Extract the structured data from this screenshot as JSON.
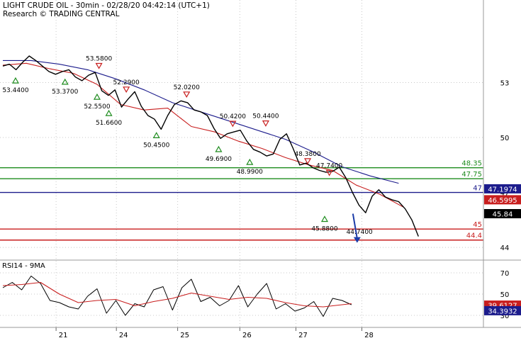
{
  "header": {
    "line1": "LIGHT CRUDE OIL - 30min - 02/28/20 04:42:14 (UTC+1)",
    "line2": "Research © TRADING CENTRAL"
  },
  "colors": {
    "price": "#000000",
    "ma_dark": "#1c1c8c",
    "ma_red": "#c81e1e",
    "level_green": "#1e8c1e",
    "level_blue": "#1c1c8c",
    "level_red": "#c81e1e",
    "arrow": "#1c3ca8"
  },
  "chart_data": [
    {
      "type": "line",
      "panel": "price",
      "x_days": [
        "21",
        "24",
        "25",
        "26",
        "27",
        "28"
      ],
      "y_ticks": [
        53,
        50,
        47,
        44
      ],
      "ylim": [
        43.5,
        56.5
      ],
      "series_price": {
        "x": [
          0,
          1.4,
          2.8,
          4.2,
          5.6,
          7.0,
          8.4,
          9.8,
          11.2,
          12.6,
          14.0,
          15.4,
          16.8,
          18.2,
          19.6,
          21.0,
          22.4,
          23.8,
          25.2,
          26.6,
          28.0,
          29.4,
          30.8,
          32.2,
          33.6,
          35.0,
          36.4,
          37.8,
          39.2,
          40.6,
          42.0,
          43.4,
          44.8,
          46.2,
          47.6,
          49.0,
          50.4,
          51.8,
          53.2,
          54.6,
          56.0,
          57.4,
          58.8,
          60.2,
          61.6,
          63.0,
          64.4,
          65.8,
          67.2,
          68.6,
          70.0,
          71.4,
          72.8,
          74.2,
          75.6,
          77.0,
          78.4,
          79.8,
          81.2,
          82.6,
          84.0,
          85.4,
          86.8,
          88.2
        ],
        "y": [
          53.9,
          54.0,
          53.7,
          54.1,
          54.45,
          54.2,
          53.9,
          53.6,
          53.45,
          53.6,
          53.7,
          53.3,
          53.1,
          53.4,
          53.55,
          52.55,
          52.3,
          52.6,
          51.66,
          52.1,
          52.5,
          51.7,
          51.2,
          51.0,
          50.45,
          51.2,
          51.8,
          52.0,
          51.9,
          51.5,
          51.4,
          51.2,
          50.5,
          49.95,
          50.2,
          50.3,
          50.4,
          49.8,
          49.35,
          49.2,
          48.99,
          49.1,
          49.9,
          50.2,
          49.4,
          48.5,
          48.6,
          48.35,
          48.2,
          48.1,
          48.15,
          48.38,
          47.8,
          47.0,
          46.3,
          45.89,
          46.8,
          47.15,
          46.75,
          46.6,
          46.5,
          46.1,
          45.5,
          44.6
        ]
      },
      "series_ma_dark": {
        "x": [
          0,
          6,
          12,
          18,
          24,
          30,
          36,
          42,
          48,
          54,
          60,
          66,
          72,
          78,
          84
        ],
        "y": [
          54.2,
          54.2,
          54.0,
          53.7,
          53.2,
          52.6,
          51.9,
          51.4,
          50.9,
          50.4,
          49.9,
          49.2,
          48.4,
          47.9,
          47.5
        ]
      },
      "series_ma_red": {
        "x": [
          0,
          5,
          10,
          15,
          20,
          25,
          30,
          35,
          40,
          45,
          50,
          55,
          60,
          65,
          70,
          75,
          80,
          85
        ],
        "y": [
          53.95,
          54.05,
          53.75,
          53.5,
          52.9,
          51.8,
          51.5,
          51.6,
          50.6,
          50.3,
          49.8,
          49.4,
          48.9,
          48.5,
          48.2,
          47.4,
          46.9,
          46.2
        ]
      },
      "levels": [
        {
          "name": "resistance-2",
          "value": 48.35,
          "label": "48.35",
          "color": "#1e8c1e"
        },
        {
          "name": "resistance-1",
          "value": 47.75,
          "label": "47.75",
          "color": "#1e8c1e"
        },
        {
          "name": "pivot",
          "value": 47,
          "label": "47",
          "color": "#1c1c8c"
        },
        {
          "name": "support-1",
          "value": 45,
          "label": "45",
          "color": "#c81e1e"
        },
        {
          "name": "support-2",
          "value": 44.4,
          "label": "44.4",
          "color": "#c81e1e"
        }
      ],
      "price_tags": [
        {
          "name": "tag-ma-dark",
          "value": 47.1974,
          "label": "47.1974",
          "bg": "#1c1c8c"
        },
        {
          "name": "tag-ma-red",
          "value": 46.5995,
          "label": "46.5995",
          "bg": "#c81e1e"
        },
        {
          "name": "tag-last",
          "value": 45.84,
          "label": "45.84",
          "bg": "#000000"
        }
      ],
      "swing_labels": [
        {
          "x": 2.7,
          "y": 53.44,
          "label": "53.4400",
          "kind": "low"
        },
        {
          "x": 13.2,
          "y": 53.37,
          "label": "53.3700",
          "kind": "low"
        },
        {
          "x": 20.4,
          "y": 53.58,
          "label": "53.5800",
          "kind": "high"
        },
        {
          "x": 20.0,
          "y": 52.55,
          "label": "52.5500",
          "kind": "low"
        },
        {
          "x": 26.2,
          "y": 52.29,
          "label": "52.2900",
          "kind": "high"
        },
        {
          "x": 22.5,
          "y": 51.66,
          "label": "51.6600",
          "kind": "low"
        },
        {
          "x": 39.0,
          "y": 52.02,
          "label": "52.0200",
          "kind": "high"
        },
        {
          "x": 32.6,
          "y": 50.45,
          "label": "50.4500",
          "kind": "low"
        },
        {
          "x": 48.8,
          "y": 50.42,
          "label": "50.4200",
          "kind": "high"
        },
        {
          "x": 55.8,
          "y": 50.44,
          "label": "50.4400",
          "kind": "high"
        },
        {
          "x": 45.8,
          "y": 49.69,
          "label": "49.6900",
          "kind": "low"
        },
        {
          "x": 52.4,
          "y": 48.99,
          "label": "48.9900",
          "kind": "low"
        },
        {
          "x": 64.7,
          "y": 48.38,
          "label": "48.3800",
          "kind": "high"
        },
        {
          "x": 69.3,
          "y": 47.74,
          "label": "47.7400",
          "kind": "high"
        },
        {
          "x": 68.3,
          "y": 45.88,
          "label": "45.8800",
          "kind": "low"
        },
        {
          "x": 75.7,
          "y": 44.74,
          "label": "44.7400",
          "kind": "target"
        }
      ],
      "forecast_arrow": {
        "from_x": 74.3,
        "from_y": 45.84,
        "to_x": 75.2,
        "to_y": 44.25
      }
    },
    {
      "type": "line",
      "panel": "indicator",
      "title": "RSI14 - 9MA",
      "y_ticks": [
        70,
        50,
        30
      ],
      "ylim": [
        20,
        80
      ],
      "series_rsi": {
        "x": [
          0,
          2,
          4,
          6,
          8,
          10,
          12,
          14,
          16,
          18,
          20,
          22,
          24,
          26,
          28,
          30,
          32,
          34,
          36,
          38,
          40,
          42,
          44,
          46,
          48,
          50,
          52,
          54,
          56,
          58,
          60,
          62,
          64,
          66,
          68,
          70,
          72,
          74
        ],
        "y": [
          56,
          61,
          54,
          67,
          60,
          44,
          42,
          38,
          36,
          48,
          55,
          32,
          44,
          30,
          41,
          38,
          54,
          57,
          35,
          56,
          64,
          43,
          47,
          39,
          44,
          58,
          38,
          50,
          60,
          36,
          41,
          34,
          37,
          43,
          29,
          46,
          44,
          40
        ]
      },
      "series_ma": {
        "x": [
          0,
          4,
          8,
          12,
          16,
          20,
          24,
          28,
          32,
          36,
          40,
          44,
          48,
          52,
          56,
          60,
          64,
          68,
          72,
          74
        ],
        "y": [
          58,
          59,
          61,
          50,
          42,
          44,
          45,
          39,
          43,
          46,
          51,
          48,
          45,
          47,
          46,
          42,
          39,
          38,
          40,
          41
        ]
      },
      "value_tags": [
        {
          "name": "tag-rsi-ma",
          "value": 39.6127,
          "label": "39.6127",
          "bg": "#c81e1e"
        },
        {
          "name": "tag-rsi",
          "value": 34.3932,
          "label": "34.3932",
          "bg": "#1c1c8c"
        }
      ]
    }
  ]
}
